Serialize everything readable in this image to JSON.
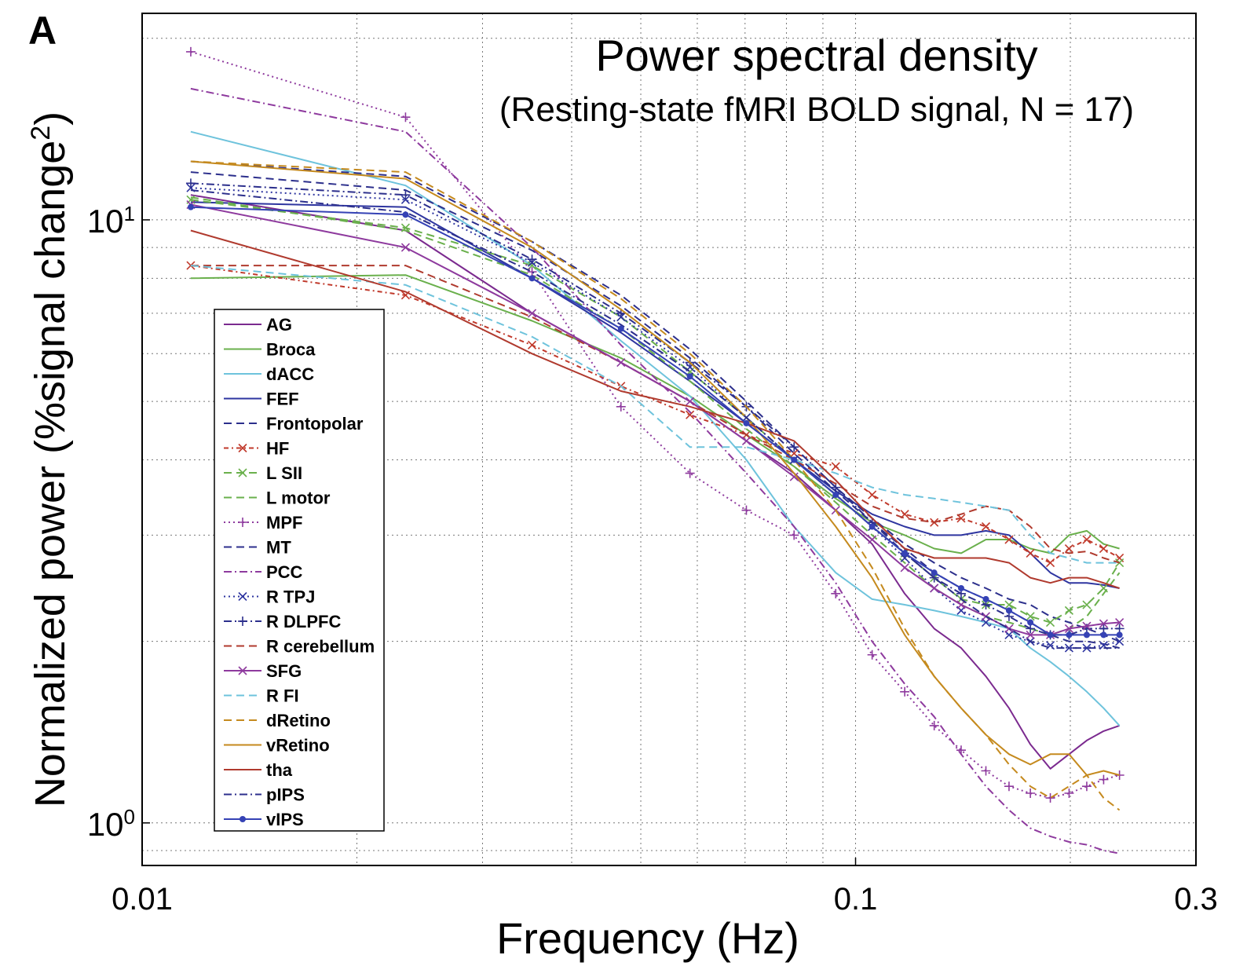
{
  "panel_label": "A",
  "chart_data": {
    "type": "line",
    "title": "Power spectral density",
    "subtitle": "(Resting-state fMRI BOLD signal, N = 17)",
    "xlabel": "Frequency (Hz)",
    "ylabel_main": "Normalized power (%signal change",
    "ylabel_sup": "2",
    "ylabel_end": ")",
    "x_scale": "log",
    "y_scale": "log",
    "xlim": [
      0.01,
      0.3
    ],
    "ylim": [
      0.85,
      22
    ],
    "grid": true,
    "legend_position": "lower-left",
    "x_ticks": [
      {
        "value": 0.01,
        "label": "0.01"
      },
      {
        "value": 0.1,
        "label": "0.1"
      },
      {
        "value": 0.3,
        "label": "0.3"
      }
    ],
    "y_ticks": [
      {
        "value": 1,
        "base": "10",
        "exp": "0"
      },
      {
        "value": 10,
        "base": "10",
        "exp": "1"
      }
    ],
    "x": [
      0.0117,
      0.0234,
      0.0352,
      0.0469,
      0.0586,
      0.0703,
      0.082,
      0.0938,
      0.1055,
      0.1172,
      0.1289,
      0.1406,
      0.1523,
      0.1641,
      0.1758,
      0.1875,
      0.1992,
      0.2109,
      0.2227,
      0.2344
    ],
    "series": [
      {
        "name": "AG",
        "color": "#7b2a8f",
        "dash": "",
        "marker": "",
        "values": [
          11.0,
          9.6,
          7.0,
          5.8,
          5.0,
          4.3,
          3.8,
          3.3,
          2.9,
          2.4,
          2.1,
          1.95,
          1.75,
          1.55,
          1.35,
          1.23,
          1.3,
          1.37,
          1.42,
          1.45
        ]
      },
      {
        "name": "Broca",
        "color": "#6ab04c",
        "dash": "",
        "marker": "",
        "values": [
          8.0,
          8.1,
          6.8,
          5.9,
          5.1,
          4.4,
          3.9,
          3.45,
          3.15,
          3.0,
          2.85,
          2.8,
          2.95,
          2.95,
          2.85,
          2.8,
          3.0,
          3.05,
          2.9,
          2.85
        ]
      },
      {
        "name": "dACC",
        "color": "#6ec3dc",
        "dash": "",
        "marker": "",
        "values": [
          14.0,
          11.4,
          8.4,
          6.3,
          5.1,
          4.0,
          3.1,
          2.6,
          2.35,
          2.3,
          2.25,
          2.2,
          2.15,
          2.1,
          1.95,
          1.85,
          1.75,
          1.65,
          1.55,
          1.45
        ]
      },
      {
        "name": "FEF",
        "color": "#2e35a0",
        "dash": "",
        "marker": "",
        "values": [
          10.7,
          10.5,
          8.0,
          6.5,
          5.4,
          4.6,
          4.0,
          3.55,
          3.25,
          3.1,
          3.0,
          3.0,
          3.05,
          3.0,
          2.8,
          2.6,
          2.5,
          2.5,
          2.48,
          2.45
        ]
      },
      {
        "name": "Frontopolar",
        "color": "#2c2f8c",
        "dash": "10 6",
        "marker": "",
        "values": [
          12.5,
          11.8,
          9.2,
          7.5,
          6.1,
          5.0,
          4.2,
          3.6,
          3.2,
          2.9,
          2.7,
          2.55,
          2.45,
          2.35,
          2.3,
          2.2,
          2.15,
          2.1,
          2.05,
          2.0
        ]
      },
      {
        "name": "HF",
        "color": "#c0392b",
        "dash": "6 4 2 4",
        "marker": "x",
        "values": [
          8.4,
          7.5,
          6.2,
          5.3,
          4.75,
          4.4,
          4.1,
          3.9,
          3.5,
          3.25,
          3.15,
          3.2,
          3.1,
          2.95,
          2.8,
          2.7,
          2.85,
          2.95,
          2.85,
          2.75
        ]
      },
      {
        "name": "L SII",
        "color": "#6ab04c",
        "dash": "10 6",
        "marker": "x",
        "values": [
          10.8,
          9.7,
          8.4,
          6.9,
          5.6,
          4.7,
          4.0,
          3.5,
          3.1,
          2.8,
          2.55,
          2.35,
          2.3,
          2.3,
          2.2,
          2.15,
          2.25,
          2.3,
          2.45,
          2.7
        ]
      },
      {
        "name": "L motor",
        "color": "#6ab04c",
        "dash": "10 6",
        "marker": "",
        "values": [
          10.9,
          9.6,
          8.1,
          6.6,
          5.4,
          4.5,
          3.9,
          3.4,
          3.0,
          2.7,
          2.45,
          2.3,
          2.2,
          2.15,
          2.1,
          2.05,
          2.1,
          2.2,
          2.4,
          2.6
        ]
      },
      {
        "name": "MPF",
        "color": "#8e3a9e",
        "dash": "2 4",
        "marker": "+",
        "values": [
          19.0,
          14.8,
          8.2,
          4.9,
          3.8,
          3.3,
          3.0,
          2.4,
          1.9,
          1.65,
          1.45,
          1.32,
          1.22,
          1.15,
          1.12,
          1.1,
          1.12,
          1.15,
          1.18,
          1.2
        ]
      },
      {
        "name": "MT",
        "color": "#2c2f8c",
        "dash": "10 6",
        "marker": "",
        "values": [
          12.0,
          11.2,
          8.9,
          7.2,
          5.9,
          4.9,
          4.1,
          3.55,
          3.15,
          2.85,
          2.6,
          2.45,
          2.35,
          2.25,
          2.15,
          2.05,
          2.0,
          2.0,
          1.98,
          1.95
        ]
      },
      {
        "name": "PCC",
        "color": "#8e3a9e",
        "dash": "10 4 2 4",
        "marker": "",
        "values": [
          16.5,
          14.0,
          9.0,
          6.2,
          4.8,
          3.8,
          3.1,
          2.5,
          2.0,
          1.7,
          1.5,
          1.3,
          1.15,
          1.05,
          0.98,
          0.95,
          0.93,
          0.92,
          0.9,
          0.89
        ]
      },
      {
        "name": "R TPJ",
        "color": "#2e35a0",
        "dash": "2 4",
        "marker": "x",
        "values": [
          11.3,
          10.8,
          8.5,
          6.9,
          5.7,
          4.7,
          4.0,
          3.5,
          3.1,
          2.75,
          2.45,
          2.25,
          2.15,
          2.05,
          2.0,
          1.97,
          1.95,
          1.95,
          1.97,
          2.0
        ]
      },
      {
        "name": "R DLPFC",
        "color": "#2c2f8c",
        "dash": "10 4 2 4",
        "marker": "+",
        "values": [
          11.5,
          11.0,
          8.6,
          7.0,
          5.8,
          4.9,
          4.2,
          3.6,
          3.15,
          2.8,
          2.55,
          2.4,
          2.3,
          2.2,
          2.1,
          2.05,
          2.05,
          2.1,
          2.1,
          2.1
        ]
      },
      {
        "name": "R cerebellum",
        "color": "#b03a2e",
        "dash": "10 6",
        "marker": "",
        "values": [
          8.4,
          8.4,
          6.9,
          5.8,
          5.0,
          4.4,
          4.0,
          3.65,
          3.35,
          3.2,
          3.15,
          3.25,
          3.35,
          3.3,
          3.1,
          2.85,
          2.8,
          2.82,
          2.75,
          2.7
        ]
      },
      {
        "name": "SFG",
        "color": "#8e3a9e",
        "dash": "",
        "marker": "x",
        "values": [
          10.6,
          9.0,
          7.0,
          5.8,
          5.0,
          4.3,
          3.75,
          3.3,
          2.95,
          2.65,
          2.45,
          2.3,
          2.2,
          2.1,
          2.05,
          2.05,
          2.1,
          2.12,
          2.14,
          2.15
        ]
      },
      {
        "name": "R FI",
        "color": "#6ec3dc",
        "dash": "10 6",
        "marker": "",
        "values": [
          8.4,
          7.8,
          6.4,
          5.3,
          4.2,
          4.2,
          4.0,
          3.8,
          3.6,
          3.5,
          3.45,
          3.4,
          3.35,
          3.3,
          3.0,
          2.8,
          2.75,
          2.7,
          2.7,
          2.7
        ]
      },
      {
        "name": "dRetino",
        "color": "#c58a1e",
        "dash": "10 6",
        "marker": "",
        "values": [
          12.5,
          12.0,
          9.2,
          7.4,
          6.0,
          4.9,
          4.0,
          3.3,
          2.65,
          2.1,
          1.75,
          1.55,
          1.4,
          1.25,
          1.15,
          1.1,
          1.15,
          1.2,
          1.1,
          1.05
        ]
      },
      {
        "name": "vRetino",
        "color": "#c58a1e",
        "dash": "",
        "marker": "",
        "values": [
          12.5,
          11.7,
          9.0,
          7.1,
          5.8,
          4.7,
          3.8,
          3.1,
          2.55,
          2.05,
          1.75,
          1.55,
          1.4,
          1.3,
          1.25,
          1.3,
          1.3,
          1.2,
          1.22,
          1.2
        ]
      },
      {
        "name": "tha",
        "color": "#b03a2e",
        "dash": "",
        "marker": "",
        "values": [
          9.6,
          7.6,
          6.0,
          5.2,
          4.9,
          4.6,
          4.3,
          3.7,
          3.2,
          2.85,
          2.75,
          2.75,
          2.75,
          2.7,
          2.55,
          2.5,
          2.55,
          2.55,
          2.5,
          2.45
        ]
      },
      {
        "name": "pIPS",
        "color": "#2c2f8c",
        "dash": "10 4 2 4",
        "marker": "",
        "values": [
          11.2,
          10.3,
          8.2,
          6.7,
          5.6,
          4.7,
          4.0,
          3.5,
          3.1,
          2.8,
          2.55,
          2.35,
          2.2,
          2.1,
          2.0,
          1.95,
          1.95,
          1.95,
          1.95,
          1.95
        ]
      },
      {
        "name": "vIPS",
        "color": "#3542b5",
        "dash": "",
        "marker": "dot",
        "values": [
          10.5,
          10.2,
          8.0,
          6.6,
          5.5,
          4.6,
          4.0,
          3.5,
          3.1,
          2.8,
          2.6,
          2.45,
          2.35,
          2.25,
          2.15,
          2.05,
          2.05,
          2.05,
          2.05,
          2.05
        ]
      }
    ]
  }
}
